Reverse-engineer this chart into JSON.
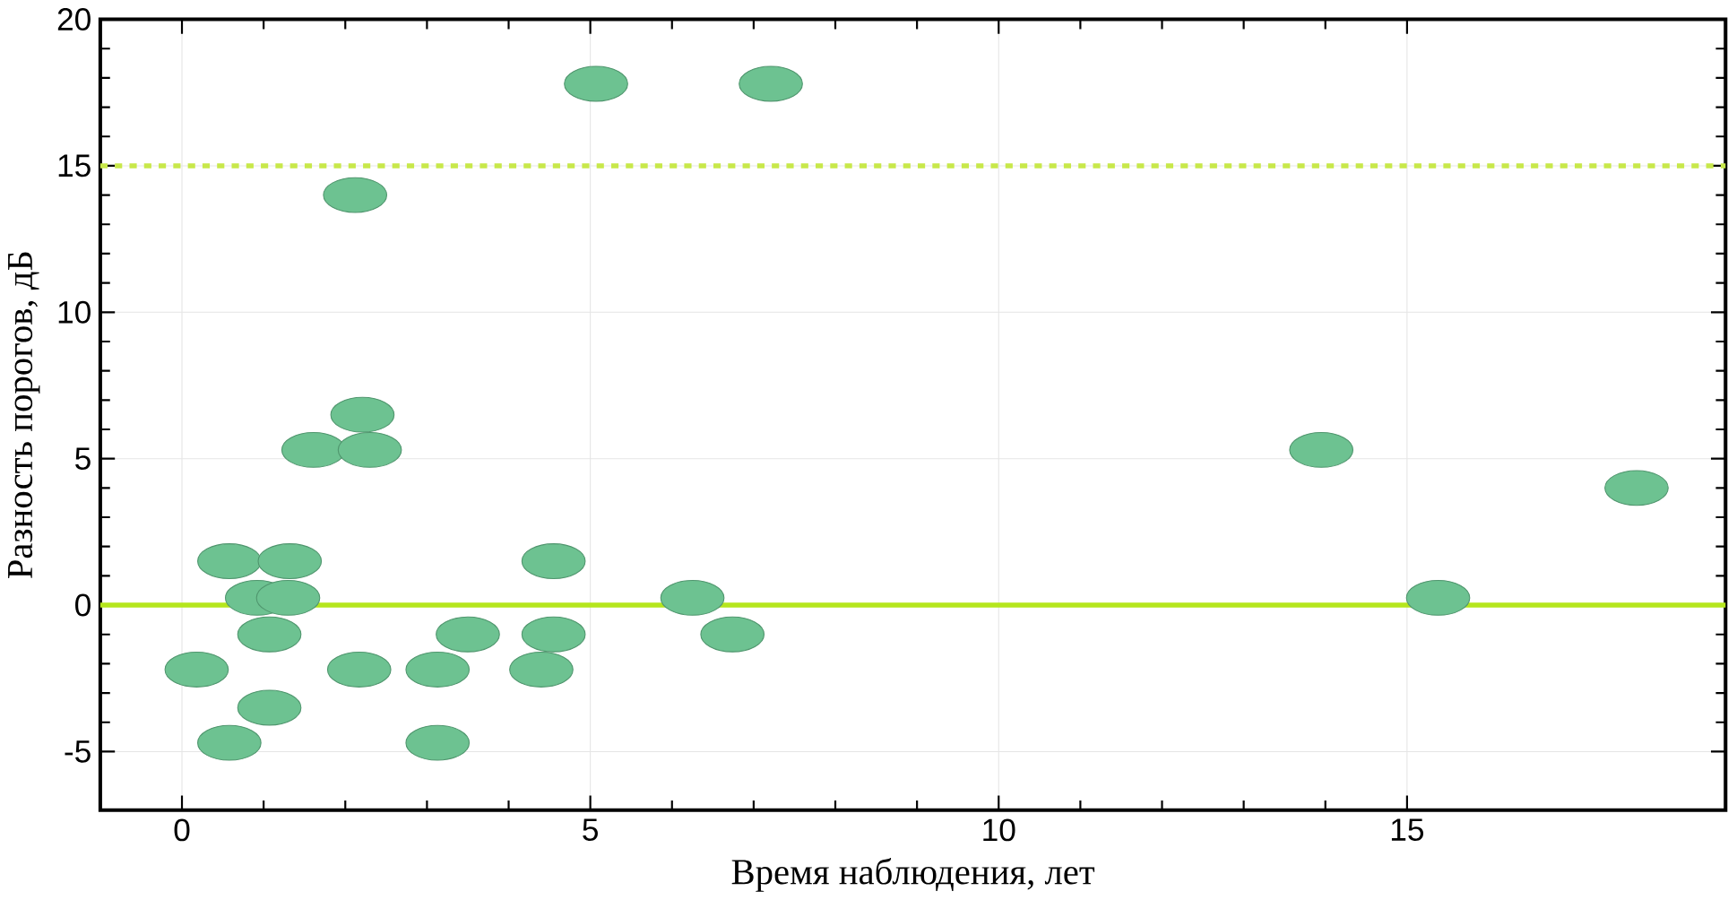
{
  "chart_data": {
    "type": "scatter",
    "xlabel": "Время наблюдения, лет",
    "ylabel": "Разность порогов, дБ",
    "x": [
      0.18,
      0.58,
      0.58,
      0.92,
      1.07,
      1.07,
      1.32,
      1.3,
      1.61,
      2.12,
      2.21,
      2.3,
      2.17,
      3.13,
      3.13,
      3.5,
      4.4,
      4.55,
      4.55,
      5.07,
      7.21,
      6.25,
      6.74,
      13.95,
      15.38,
      17.81
    ],
    "values": [
      -2.2,
      -4.7,
      1.5,
      0.25,
      -1.0,
      -3.5,
      1.5,
      0.25,
      5.3,
      14.0,
      6.5,
      5.3,
      -2.2,
      -2.2,
      -4.7,
      -1.0,
      -2.2,
      -1.0,
      1.5,
      17.8,
      17.8,
      0.25,
      -1.0,
      5.3,
      0.25,
      4.0
    ],
    "color": "#6dc291",
    "marker": "circle",
    "xlim": [
      -1,
      18.9
    ],
    "ylim": [
      -7,
      20
    ],
    "xticks": [
      0,
      5,
      10,
      15
    ],
    "yticks": [
      -5,
      0,
      5,
      10,
      15,
      20
    ],
    "grid": true,
    "ref_lines": [
      {
        "axis": "y",
        "value": 0,
        "color": "#b5e61d",
        "line_style": "solid"
      },
      {
        "axis": "y",
        "value": 15,
        "color": "#c8e84a",
        "line_style": "dashed"
      }
    ]
  }
}
